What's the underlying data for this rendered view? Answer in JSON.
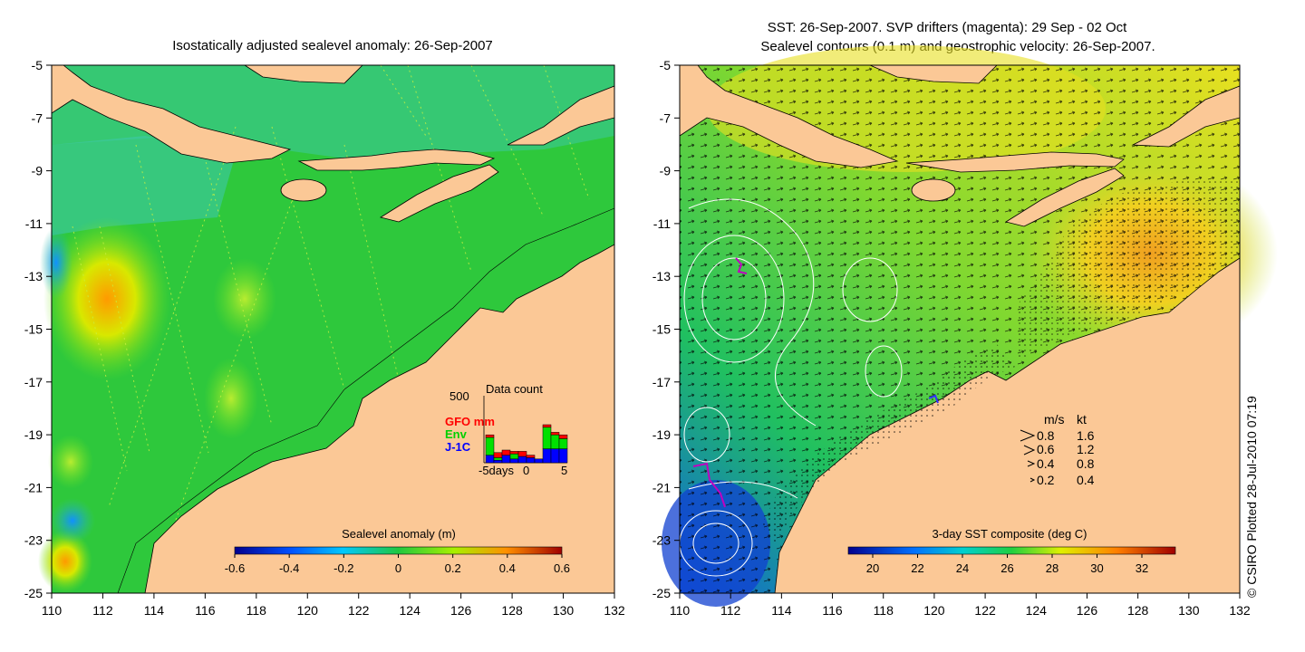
{
  "left_panel": {
    "title": "Isostatically adjusted sealevel anomaly: 26-Sep-2007",
    "x_ticks": [
      "110",
      "112",
      "114",
      "116",
      "118",
      "120",
      "122",
      "124",
      "126",
      "128",
      "130",
      "132"
    ],
    "y_ticks": [
      "-5",
      "-7",
      "-9",
      "-11",
      "-13",
      "-15",
      "-17",
      "-19",
      "-21",
      "-23",
      "-25"
    ],
    "colorbar": {
      "label": "Sealevel anomaly (m)",
      "ticks": [
        "-0.6",
        "-0.4",
        "-0.2",
        "0",
        "0.2",
        "0.4",
        "0.6"
      ]
    },
    "data_count": {
      "title": "Data count",
      "ymax_label": "500",
      "legend": [
        {
          "name": "GFO mm",
          "color": "#ff0000"
        },
        {
          "name": "Env",
          "color": "#00e000"
        },
        {
          "name": "J-1C",
          "color": "#0000ff"
        }
      ],
      "x_labels": [
        "-5days",
        "0",
        "5"
      ],
      "bars_J1C": [
        60,
        20,
        60,
        30,
        50,
        40,
        30,
        110,
        110,
        110
      ],
      "bars_Env": [
        140,
        20,
        0,
        40,
        0,
        0,
        0,
        170,
        110,
        80
      ],
      "bars_GFO": [
        20,
        40,
        40,
        20,
        40,
        20,
        0,
        20,
        20,
        30
      ]
    }
  },
  "right_panel": {
    "title_line1": "SST: 26-Sep-2007. SVP drifters (magenta): 29 Sep - 02 Oct",
    "title_line2": "Sealevel contours (0.1 m) and geostrophic velocity: 26-Sep-2007.",
    "x_ticks": [
      "110",
      "112",
      "114",
      "116",
      "118",
      "120",
      "122",
      "124",
      "126",
      "128",
      "130",
      "132"
    ],
    "y_ticks": [
      "-5",
      "-7",
      "-9",
      "-11",
      "-13",
      "-15",
      "-17",
      "-19",
      "-21",
      "-23",
      "-25"
    ],
    "colorbar": {
      "label": "3-day SST composite (deg C)",
      "ticks": [
        "20",
        "22",
        "24",
        "26",
        "28",
        "30",
        "32"
      ]
    },
    "velocity_legend": {
      "header_ms": "m/s",
      "header_kt": "kt",
      "rows": [
        {
          "ms": "0.8",
          "kt": "1.6"
        },
        {
          "ms": "0.6",
          "kt": "1.2"
        },
        {
          "ms": "0.4",
          "kt": "0.8"
        },
        {
          "ms": "0.2",
          "kt": "0.4"
        }
      ]
    }
  },
  "credit": "© CSIRO Plotted 28-Jul-2010 07:19",
  "colors": {
    "land": "#fbc896",
    "sla_mid": "#2dc83c",
    "sst_mid": "#9ee040",
    "drifter": "#c000c0"
  }
}
